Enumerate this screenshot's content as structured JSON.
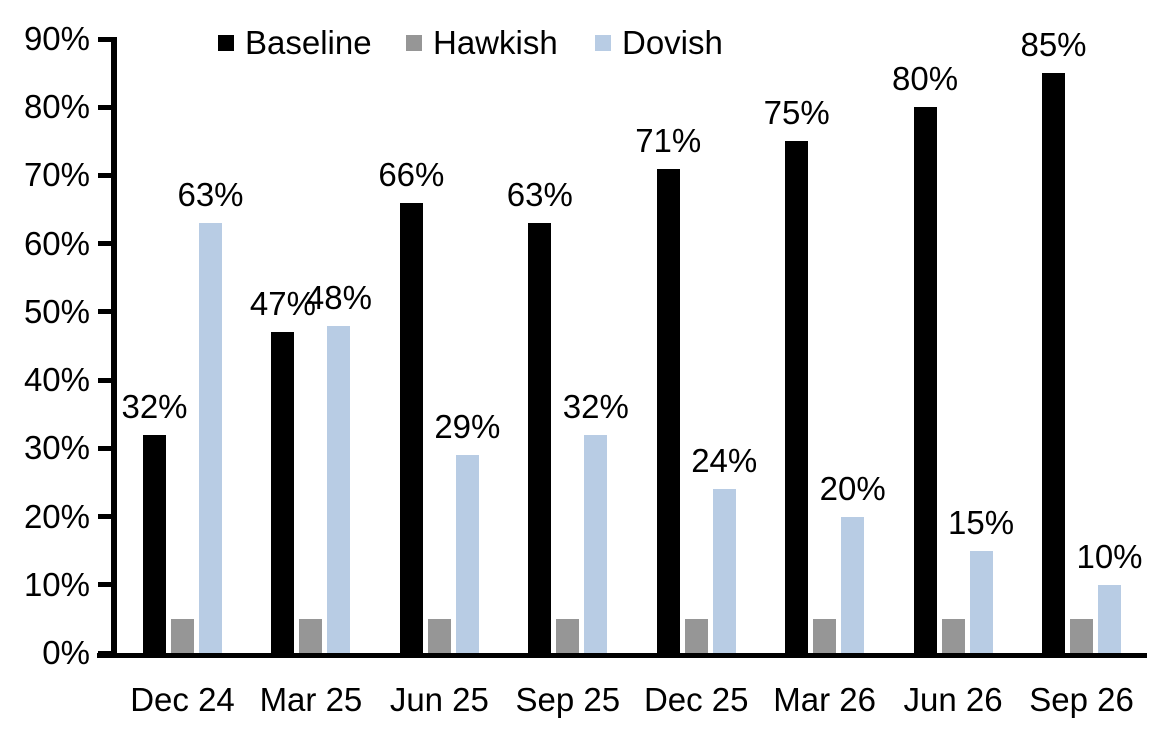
{
  "chart_data": {
    "type": "bar",
    "title": "",
    "categories": [
      "Dec 24",
      "Mar 25",
      "Jun 25",
      "Sep 25",
      "Dec 25",
      "Mar 26",
      "Jun 26",
      "Sep 26"
    ],
    "series": [
      {
        "name": "Baseline",
        "color": "#000000",
        "values": [
          32,
          47,
          66,
          63,
          71,
          75,
          80,
          85
        ],
        "labels": [
          "32%",
          "47%",
          "66%",
          "63%",
          "71%",
          "75%",
          "80%",
          "85%"
        ],
        "show_labels": true
      },
      {
        "name": "Hawkish",
        "color": "#969696",
        "values": [
          5,
          5,
          5,
          5,
          5,
          5,
          5,
          5
        ],
        "labels": [],
        "show_labels": false
      },
      {
        "name": "Dovish",
        "color": "#B8CCE4",
        "values": [
          63,
          48,
          29,
          32,
          24,
          20,
          15,
          10
        ],
        "labels": [
          "63%",
          "48%",
          "29%",
          "32%",
          "24%",
          "20%",
          "15%",
          "10%"
        ],
        "show_labels": true
      }
    ],
    "y_axis": {
      "min": 0,
      "max": 90,
      "step": 10,
      "tick_labels": [
        "0%",
        "10%",
        "20%",
        "30%",
        "40%",
        "50%",
        "60%",
        "70%",
        "80%",
        "90%"
      ]
    },
    "x_label": "",
    "y_label": "",
    "legend": {
      "position": "top",
      "entries": [
        "Baseline",
        "Hawkish",
        "Dovish"
      ]
    },
    "grid": false,
    "axis_color": "#000000",
    "background_color": "#ffffff"
  }
}
